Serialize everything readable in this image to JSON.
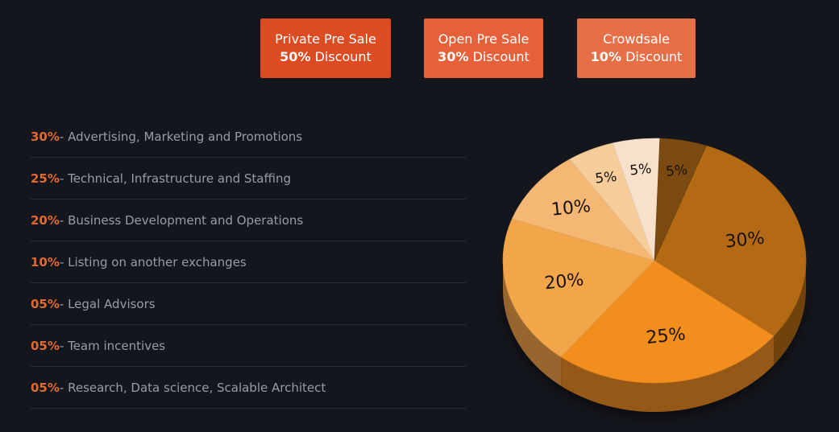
{
  "sales": [
    {
      "name": "Private Pre Sale",
      "discount_value": "50%",
      "discount_label": "Discount"
    },
    {
      "name": "Open Pre Sale",
      "discount_value": "30%",
      "discount_label": "Discount"
    },
    {
      "name": "Crowdsale",
      "discount_value": "10%",
      "discount_label": "Discount"
    }
  ],
  "allocation_list": [
    {
      "pct": "30%",
      "label": "- Advertising, Marketing and Promotions"
    },
    {
      "pct": "25%",
      "label": "- Technical, Infrastructure and Staffing"
    },
    {
      "pct": "20%",
      "label": "- Business Development and Operations"
    },
    {
      "pct": "10%",
      "label": "- Listing on another exchanges"
    },
    {
      "pct": "05%",
      "label": "- Legal Advisors"
    },
    {
      "pct": "05%",
      "label": "- Team incentives"
    },
    {
      "pct": "05%",
      "label": "- Research, Data science, Scalable Architect"
    }
  ],
  "chart_data": {
    "type": "pie",
    "title": "",
    "slices": [
      {
        "label": "30%",
        "value": 30,
        "color": "#b46a14"
      },
      {
        "label": "25%",
        "value": 25,
        "color": "#f28e1e"
      },
      {
        "label": "20%",
        "value": 20,
        "color": "#f3a54a"
      },
      {
        "label": "10%",
        "value": 10,
        "color": "#f5b774"
      },
      {
        "label": "5%",
        "value": 5,
        "color": "#f6cd9a"
      },
      {
        "label": "5%",
        "value": 5,
        "color": "#f8e1cb"
      },
      {
        "label": "5%",
        "value": 5,
        "color": "#7b4a11"
      }
    ]
  }
}
